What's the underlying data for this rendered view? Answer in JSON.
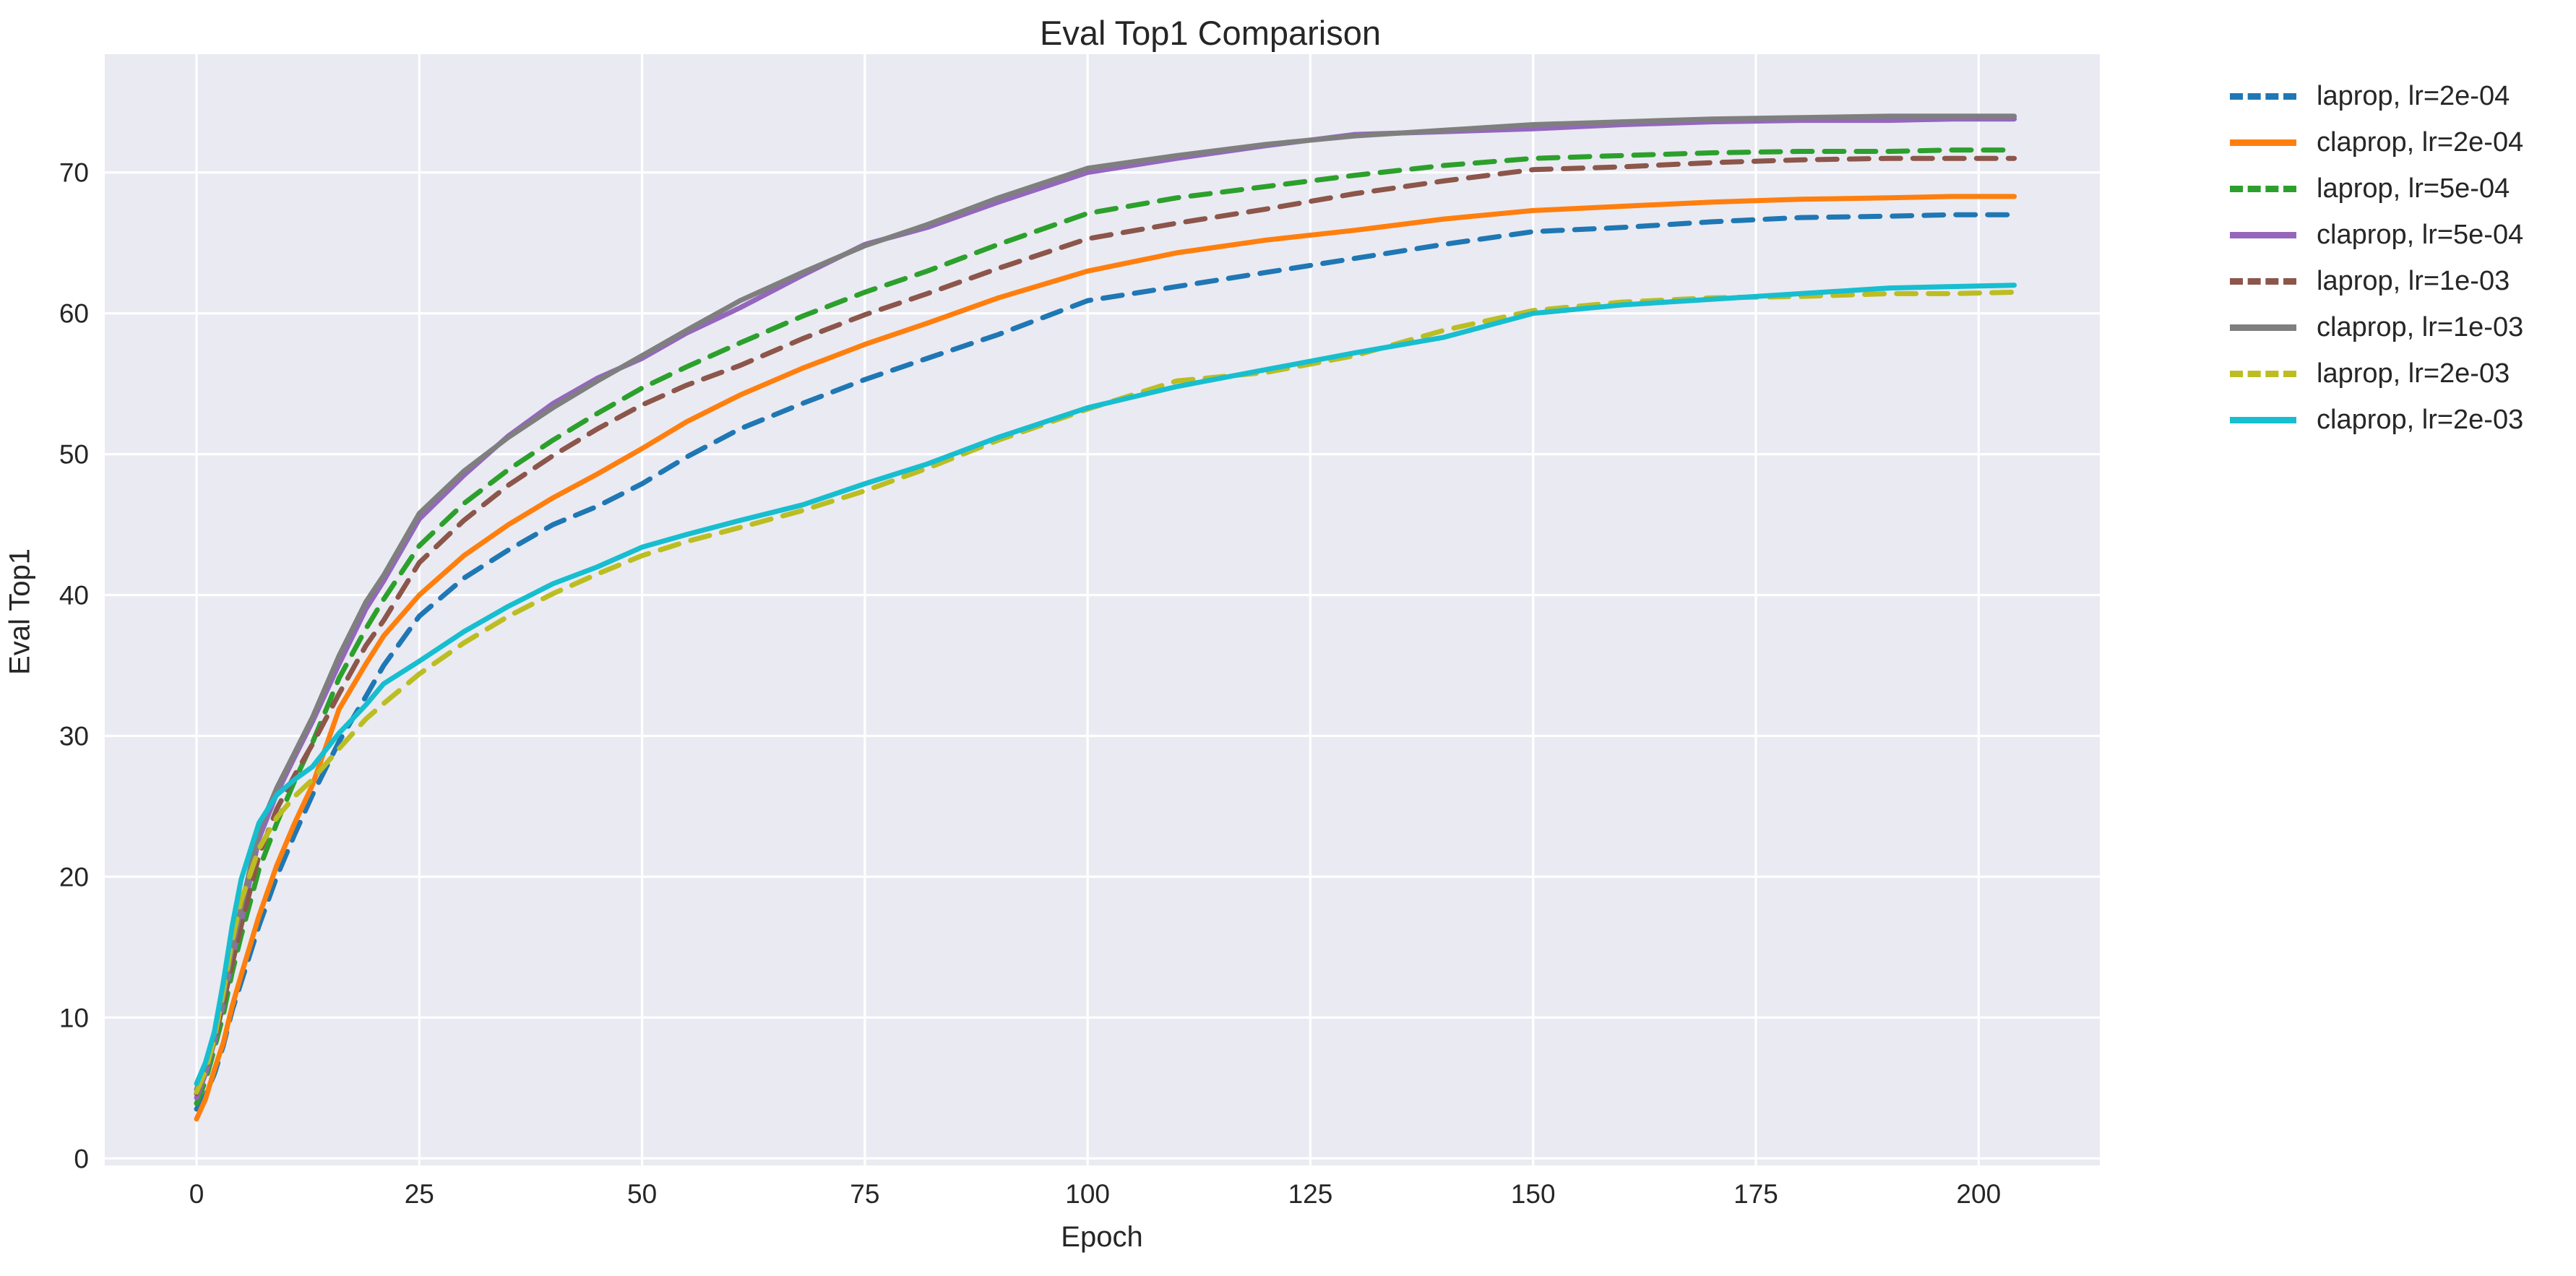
{
  "chart_data": {
    "type": "line",
    "title": "Eval Top1 Comparison",
    "xlabel": "Epoch",
    "ylabel": "Eval Top1",
    "xlim": [
      -10.3,
      213.6
    ],
    "ylim": [
      -0.5,
      78.4
    ],
    "xticks": [
      0,
      25,
      50,
      75,
      100,
      125,
      150,
      175,
      200
    ],
    "yticks": [
      0,
      10,
      20,
      30,
      40,
      50,
      60,
      70
    ],
    "grid": true,
    "legend_position": "outside-right",
    "axes_background": "#eaeaf2",
    "grid_color": "#ffffff",
    "text_color": "#262626",
    "x": [
      0,
      1,
      2,
      3,
      4,
      5,
      7,
      9,
      11,
      13,
      16,
      19,
      21,
      25,
      30,
      35,
      40,
      45,
      50,
      55,
      61,
      68,
      75,
      82,
      90,
      100,
      110,
      120,
      130,
      140,
      150,
      160,
      170,
      180,
      190,
      197,
      204
    ],
    "series": [
      {
        "name": "laprop, lr=2e-04",
        "color": "#1f77b4",
        "style": "dashed",
        "values": [
          3.5,
          4.5,
          6.0,
          8.0,
          10.5,
          12.5,
          16.5,
          20.0,
          23.0,
          25.8,
          29.6,
          32.8,
          35.0,
          38.5,
          41.2,
          43.2,
          45.0,
          46.3,
          47.9,
          49.8,
          51.8,
          53.6,
          55.3,
          56.8,
          58.5,
          60.9,
          61.9,
          62.9,
          63.9,
          64.9,
          65.8,
          66.1,
          66.5,
          66.8,
          66.9,
          67.0,
          67.0
        ]
      },
      {
        "name": "claprop, lr=2e-04",
        "color": "#ff7f0e",
        "style": "solid",
        "values": [
          2.8,
          4.2,
          6.3,
          8.2,
          10.8,
          13.0,
          17.2,
          20.8,
          23.8,
          26.5,
          31.9,
          35.1,
          37.1,
          40.0,
          42.8,
          45.0,
          46.9,
          48.6,
          50.4,
          52.3,
          54.2,
          56.1,
          57.8,
          59.3,
          61.1,
          63.0,
          64.3,
          65.2,
          65.9,
          66.7,
          67.3,
          67.6,
          67.9,
          68.1,
          68.2,
          68.3,
          68.3
        ]
      },
      {
        "name": "laprop, lr=5e-04",
        "color": "#2ca02c",
        "style": "dashed",
        "values": [
          3.9,
          5.5,
          7.8,
          10.2,
          13.2,
          15.8,
          20.5,
          23.8,
          26.8,
          29.5,
          34.1,
          37.6,
          39.7,
          43.5,
          46.5,
          48.9,
          51.0,
          52.9,
          54.7,
          56.2,
          57.9,
          59.8,
          61.5,
          63.0,
          64.9,
          67.1,
          68.2,
          69.0,
          69.8,
          70.5,
          71.0,
          71.2,
          71.4,
          71.5,
          71.5,
          71.6,
          71.6
        ]
      },
      {
        "name": "claprop, lr=5e-04",
        "color": "#9467bd",
        "style": "solid",
        "values": [
          4.3,
          6.0,
          8.3,
          11.0,
          14.3,
          16.8,
          22.7,
          25.9,
          28.5,
          31.0,
          35.1,
          39.0,
          41.0,
          45.4,
          48.5,
          51.3,
          53.6,
          55.4,
          56.8,
          58.6,
          60.4,
          62.7,
          64.9,
          66.1,
          67.9,
          70.0,
          71.0,
          71.9,
          72.7,
          72.9,
          73.1,
          73.4,
          73.6,
          73.7,
          73.7,
          73.8,
          73.8
        ]
      },
      {
        "name": "laprop, lr=1e-03",
        "color": "#8c564b",
        "style": "dashed",
        "values": [
          4.6,
          6.2,
          8.4,
          11.0,
          13.8,
          16.5,
          21.5,
          24.8,
          27.2,
          29.4,
          33.0,
          36.4,
          38.2,
          42.3,
          45.3,
          47.8,
          49.9,
          51.8,
          53.5,
          54.9,
          56.3,
          58.2,
          59.9,
          61.4,
          63.2,
          65.3,
          66.4,
          67.4,
          68.5,
          69.4,
          70.2,
          70.4,
          70.7,
          70.9,
          71.0,
          71.0,
          71.0
        ]
      },
      {
        "name": "claprop, lr=1e-03",
        "color": "#7f7f7f",
        "style": "solid",
        "values": [
          4.9,
          6.5,
          8.8,
          11.5,
          15.0,
          17.8,
          23.3,
          26.3,
          28.8,
          31.3,
          35.7,
          39.5,
          41.4,
          45.8,
          48.8,
          51.2,
          53.3,
          55.2,
          57.0,
          58.8,
          60.9,
          62.9,
          64.8,
          66.3,
          68.2,
          70.3,
          71.2,
          72.0,
          72.6,
          73.0,
          73.4,
          73.6,
          73.8,
          73.9,
          74.0,
          74.0,
          74.0
        ]
      },
      {
        "name": "laprop, lr=2e-03",
        "color": "#bcbd22",
        "style": "dashed",
        "values": [
          4.7,
          6.2,
          8.5,
          11.8,
          15.5,
          18.3,
          22.0,
          24.2,
          25.7,
          26.9,
          29.1,
          31.2,
          32.3,
          34.4,
          36.6,
          38.5,
          40.1,
          41.5,
          42.8,
          43.8,
          44.8,
          46.0,
          47.4,
          49.0,
          51.0,
          53.2,
          55.2,
          55.8,
          57.0,
          58.8,
          60.2,
          60.8,
          61.1,
          61.2,
          61.4,
          61.4,
          61.5
        ]
      },
      {
        "name": "claprop, lr=2e-03",
        "color": "#17becf",
        "style": "solid",
        "values": [
          5.3,
          6.8,
          9.0,
          12.5,
          16.5,
          19.8,
          23.8,
          25.8,
          26.9,
          27.8,
          30.2,
          32.2,
          33.7,
          35.3,
          37.4,
          39.2,
          40.8,
          42.0,
          43.4,
          44.3,
          45.3,
          46.4,
          47.9,
          49.3,
          51.2,
          53.3,
          54.8,
          56.0,
          57.2,
          58.3,
          60.0,
          60.6,
          61.0,
          61.4,
          61.8,
          61.9,
          62.0
        ]
      }
    ]
  },
  "layout_note": "static matplotlib-style figure"
}
